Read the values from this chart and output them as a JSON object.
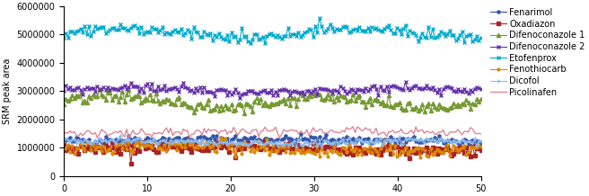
{
  "title": "",
  "ylabel": "SRM peak area",
  "xlabel": "",
  "xlim": [
    0,
    50
  ],
  "ylim": [
    0,
    6000000
  ],
  "yticks": [
    0,
    1000000,
    2000000,
    3000000,
    4000000,
    5000000,
    6000000
  ],
  "xticks": [
    0,
    10,
    20,
    30,
    40,
    50
  ],
  "n_points": 200,
  "series": [
    {
      "name": "Fenarimol",
      "color": "#3355AA",
      "mean": 1250000,
      "noise": 70000,
      "amp": 50000,
      "freq": 1.2,
      "marker": "p",
      "markersize": 2.5,
      "linewidth": 0.8,
      "seed": 42
    },
    {
      "name": "Oxadiazon",
      "color": "#AA2222",
      "mean": 960000,
      "noise": 100000,
      "amp": 60000,
      "freq": 1.5,
      "marker": "s",
      "markersize": 2.5,
      "linewidth": 0.8,
      "seed": 7
    },
    {
      "name": "Difenoconazole 1",
      "color": "#779933",
      "mean": 2620000,
      "noise": 120000,
      "amp": 200000,
      "freq": 4.0,
      "marker": "^",
      "markersize": 3,
      "linewidth": 0.8,
      "seed": 13
    },
    {
      "name": "Difenoconazole 2",
      "color": "#6633AA",
      "mean": 3020000,
      "noise": 80000,
      "amp": 100000,
      "freq": 3.0,
      "marker": "x",
      "markersize": 3,
      "linewidth": 0.8,
      "seed": 99
    },
    {
      "name": "Etofenprox",
      "color": "#00AACC",
      "mean": 5050000,
      "noise": 100000,
      "amp": 150000,
      "freq": 3.5,
      "marker": "x",
      "markersize": 3.5,
      "linewidth": 0.8,
      "seed": 55
    },
    {
      "name": "Fenothiocarb",
      "color": "#DD8800",
      "mean": 970000,
      "noise": 120000,
      "amp": 80000,
      "freq": 2.0,
      "marker": "o",
      "markersize": 2,
      "linewidth": 0.8,
      "seed": 21
    },
    {
      "name": "Dicofol",
      "color": "#88BBEE",
      "mean": 1200000,
      "noise": 60000,
      "amp": 60000,
      "freq": 3.0,
      "marker": "+",
      "markersize": 3,
      "linewidth": 0.8,
      "seed": 88
    },
    {
      "name": "Picolinafen",
      "color": "#DD8899",
      "mean": 1500000,
      "noise": 80000,
      "amp": 80000,
      "freq": 0.8,
      "marker": "None",
      "markersize": 2,
      "linewidth": 1.0,
      "seed": 61
    }
  ],
  "figsize": [
    6.56,
    2.18
  ],
  "dpi": 100
}
